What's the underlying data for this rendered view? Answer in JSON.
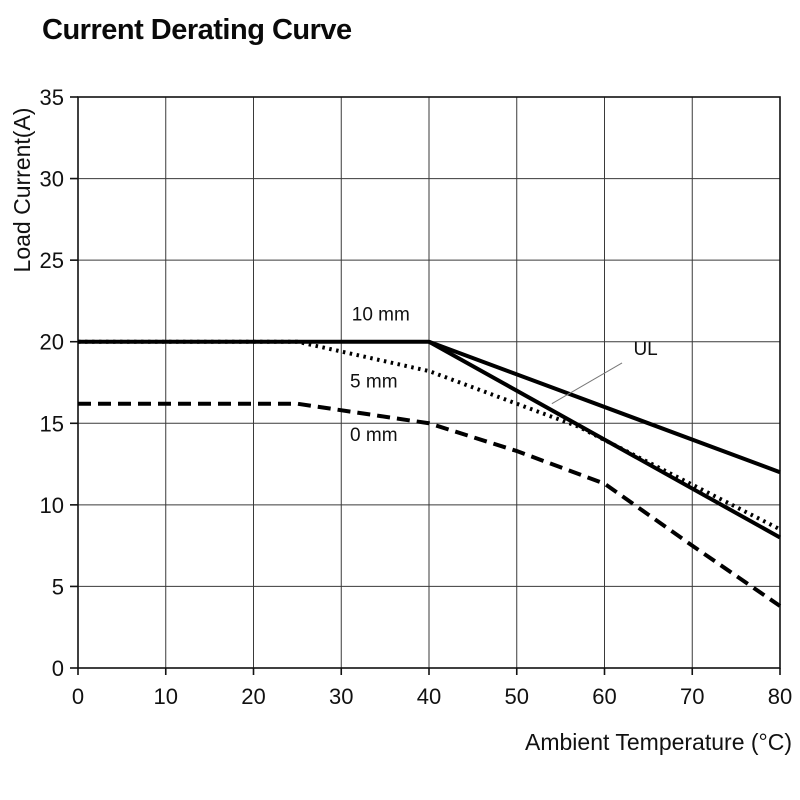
{
  "chart_data": {
    "type": "line",
    "title": "Current Derating Curve",
    "xlabel": "Ambient Temperature (°C)",
    "ylabel": "Load Current(A)",
    "xlim": [
      0,
      80
    ],
    "ylim": [
      0,
      35
    ],
    "x_ticks": [
      0,
      10,
      20,
      30,
      40,
      50,
      60,
      70,
      80
    ],
    "y_ticks": [
      0,
      5,
      10,
      15,
      20,
      25,
      30,
      35
    ],
    "grid": true,
    "legend_position": "inline-labels",
    "colors": {
      "line": "#000000",
      "grid": "#3a3a3a",
      "frame": "#111111"
    },
    "series": [
      {
        "name": "10 mm",
        "style": "solid",
        "points": [
          [
            0,
            20
          ],
          [
            40,
            20
          ],
          [
            80,
            12
          ]
        ]
      },
      {
        "name": "UL",
        "style": "solid",
        "points": [
          [
            40,
            20
          ],
          [
            80,
            8
          ]
        ]
      },
      {
        "name": "5 mm",
        "style": "dotted",
        "points": [
          [
            0,
            20
          ],
          [
            25,
            20
          ],
          [
            40,
            18.2
          ],
          [
            57,
            14.8
          ],
          [
            80,
            8.5
          ]
        ]
      },
      {
        "name": "0 mm",
        "style": "dashed",
        "points": [
          [
            0,
            16.2
          ],
          [
            25,
            16.2
          ],
          [
            40,
            15
          ],
          [
            50,
            13.3
          ],
          [
            60,
            11.3
          ],
          [
            70,
            7.5
          ],
          [
            80,
            3.8
          ]
        ]
      }
    ],
    "annotations": [
      {
        "text": "10 mm",
        "x": 31.2,
        "y": 21.3
      },
      {
        "text": "5 mm",
        "x": 31.0,
        "y": 17.2
      },
      {
        "text": "0 mm",
        "x": 31.0,
        "y": 13.9
      },
      {
        "text": "UL",
        "x": 63.3,
        "y": 19.2,
        "leader": [
          62.0,
          18.7,
          54.0,
          16.2
        ]
      }
    ]
  }
}
